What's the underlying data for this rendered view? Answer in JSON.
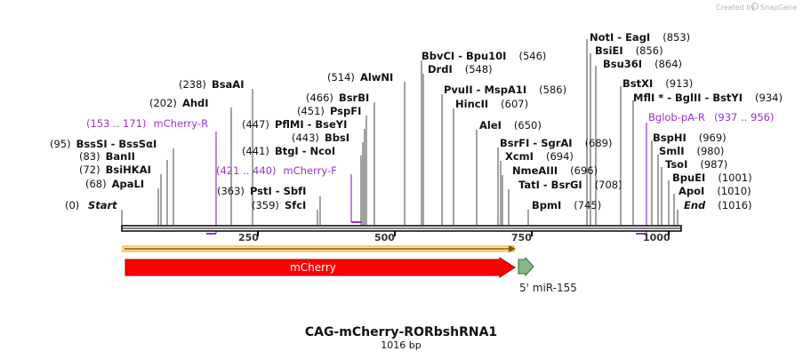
{
  "credit": {
    "created_by": "Created by",
    "brand": "SnapGene"
  },
  "title": "CAG-mCherry-RORbshRNA1",
  "length_label": "1016 bp",
  "axis": {
    "start": 0,
    "end": 1016,
    "ticks": [
      "250",
      "500",
      "750",
      "1000"
    ]
  },
  "sites": [
    {
      "pos": "(0)",
      "name": "Start",
      "style": "italic"
    },
    {
      "pos": "(68)",
      "name": "ApaLI"
    },
    {
      "pos": "(72)",
      "name": "BsiHKAI"
    },
    {
      "pos": "(83)",
      "name": "BanII"
    },
    {
      "pos": "(95)",
      "name": "BssSI  - BssSαI"
    },
    {
      "pos": "(202)",
      "name": "AhdI"
    },
    {
      "pos": "(238)",
      "name": "BsaAI"
    },
    {
      "pos": "(359)",
      "name": "SfcI"
    },
    {
      "pos": "(363)",
      "name": "PstI  - SbfI"
    },
    {
      "pos": "(441)",
      "name": "BtgI  - NcoI"
    },
    {
      "pos": "(443)",
      "name": "BbsI"
    },
    {
      "pos": "(447)",
      "name": "PflMI  - BseYI"
    },
    {
      "pos": "(451)",
      "name": "PspFI"
    },
    {
      "pos": "(466)",
      "name": "BsrBI"
    },
    {
      "pos": "(514)",
      "name": "AlwNI"
    },
    {
      "pos": "(546)",
      "name": "BbvCI  - Bpu10I"
    },
    {
      "pos": "(548)",
      "name": "DrdI"
    },
    {
      "pos": "(586)",
      "name": "PvuII  - MspA1I"
    },
    {
      "pos": "(607)",
      "name": "HincII"
    },
    {
      "pos": "(650)",
      "name": "AleI"
    },
    {
      "pos": "(689)",
      "name": "BsrFI  - SgrAI"
    },
    {
      "pos": "(694)",
      "name": "XcmI"
    },
    {
      "pos": "(696)",
      "name": "NmeAIII"
    },
    {
      "pos": "(708)",
      "name": "TatI  - BsrGI"
    },
    {
      "pos": "(745)",
      "name": "BpmI"
    },
    {
      "pos": "(853)",
      "name": "NotI  - EagI"
    },
    {
      "pos": "(856)",
      "name": "BsiEI"
    },
    {
      "pos": "(864)",
      "name": "Bsu36I"
    },
    {
      "pos": "(913)",
      "name": "BstXI"
    },
    {
      "pos": "(934)",
      "name": "MflI * - BglII  - BstYI"
    },
    {
      "pos": "(969)",
      "name": "BspHI"
    },
    {
      "pos": "(980)",
      "name": "SmlI"
    },
    {
      "pos": "(987)",
      "name": "TsoI"
    },
    {
      "pos": "(1001)",
      "name": "BpuEI"
    },
    {
      "pos": "(1010)",
      "name": "ApoI"
    },
    {
      "pos": "(1016)",
      "name": "End",
      "style": "italic"
    }
  ],
  "primers": [
    {
      "range": "(153 .. 171)",
      "name": "mCherry-R"
    },
    {
      "range": "(421 .. 440)",
      "name": "mCherry-F"
    },
    {
      "range": "(937 .. 956)",
      "name": "Bglob-pA-R"
    }
  ],
  "features": [
    {
      "name": "mCherry",
      "start": 7,
      "end": 725,
      "color": "#ff0000"
    },
    {
      "name": "5' miR-155",
      "start": 725,
      "end": 751,
      "color": "#88b788"
    }
  ],
  "colors": {
    "primer": "#9933cc",
    "orf": "#f5a623",
    "backbone": "#000000"
  }
}
